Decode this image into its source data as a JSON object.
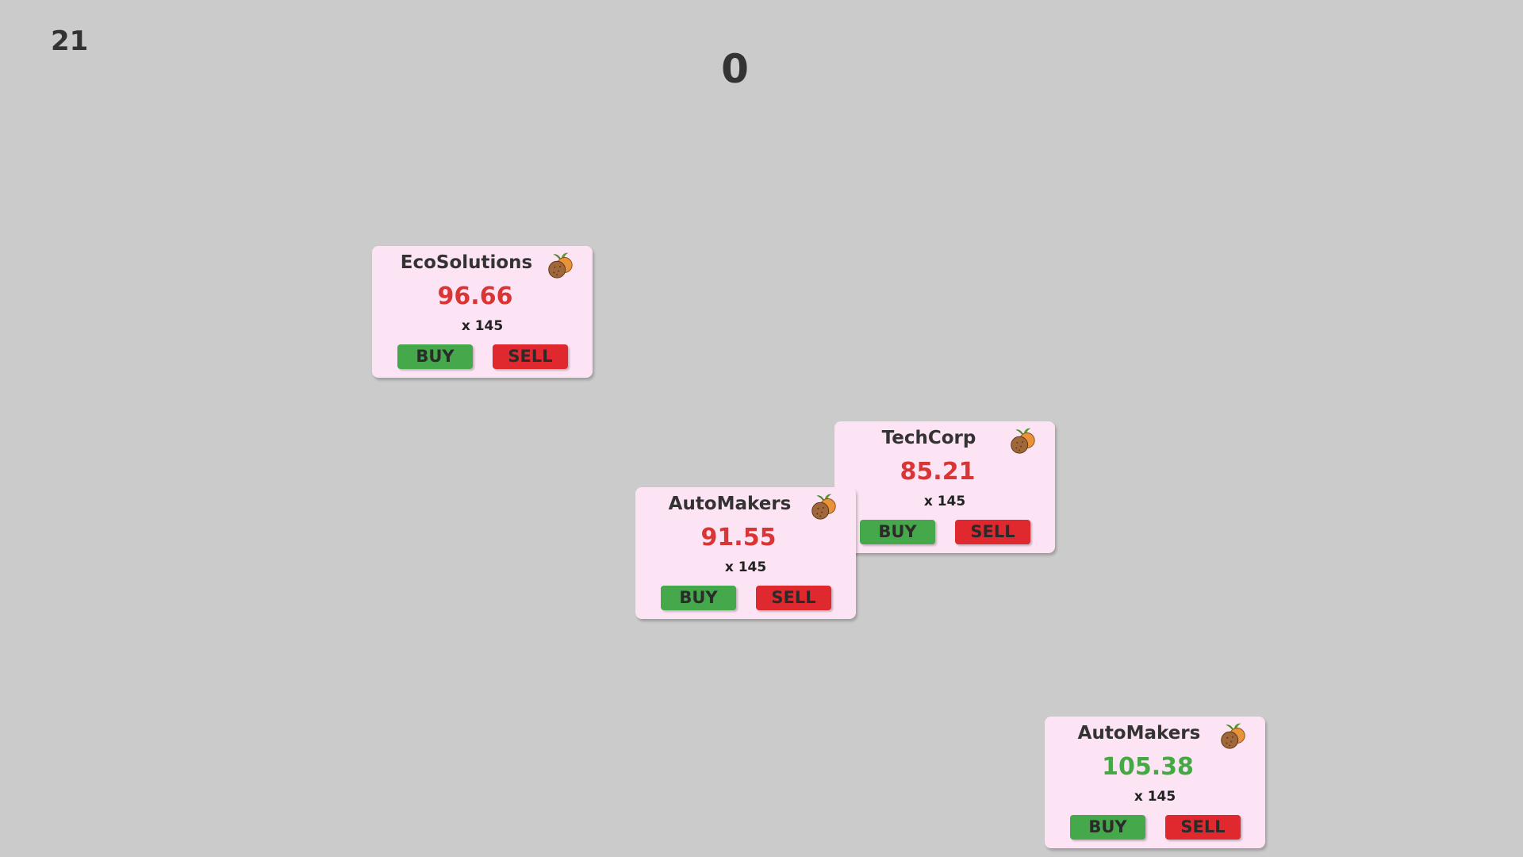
{
  "hud": {
    "timer": "21",
    "score": "0"
  },
  "cards": [
    {
      "name": "EcoSolutions",
      "price": "96.66",
      "trend": "down",
      "quantity": "x 145",
      "icon": "coconut-icon",
      "buy_label": "BUY",
      "sell_label": "SELL"
    },
    {
      "name": "TechCorp",
      "price": "85.21",
      "trend": "down",
      "quantity": "x 145",
      "icon": "coconut-icon",
      "buy_label": "BUY",
      "sell_label": "SELL"
    },
    {
      "name": "AutoMakers",
      "price": "91.55",
      "trend": "down",
      "quantity": "x 145",
      "icon": "coconut-icon",
      "buy_label": "BUY",
      "sell_label": "SELL"
    },
    {
      "name": "AutoMakers",
      "price": "105.38",
      "trend": "up",
      "quantity": "x 145",
      "icon": "coconut-icon",
      "buy_label": "BUY",
      "sell_label": "SELL"
    }
  ],
  "colors": {
    "background": "#cbcbcb",
    "card": "#fce4f4",
    "price_down": "#d93535",
    "price_up": "#44a844",
    "buy": "#45a84a",
    "sell": "#e0282f"
  }
}
